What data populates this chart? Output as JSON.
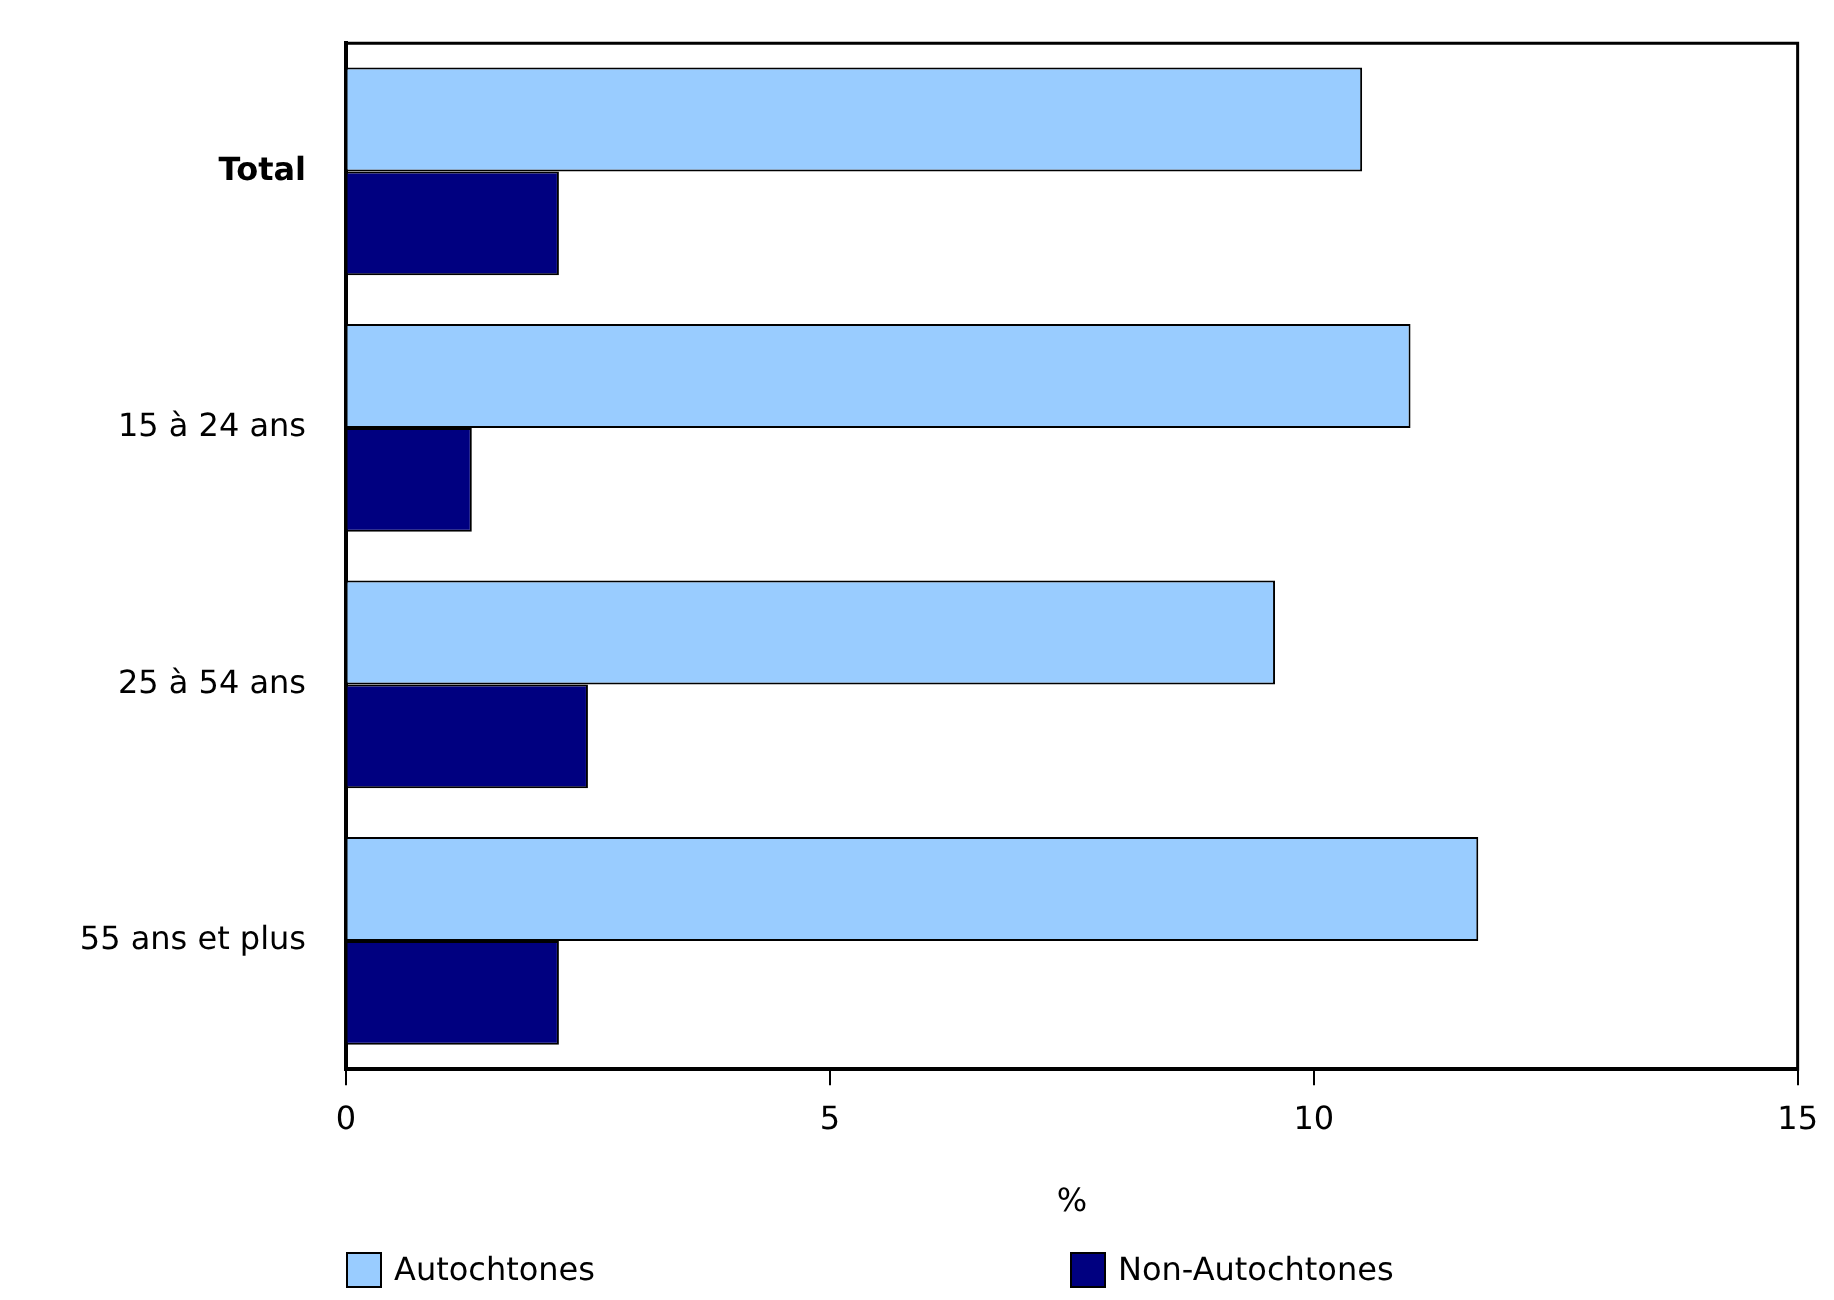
{
  "chart_data": {
    "type": "bar",
    "orientation": "horizontal",
    "xlabel": "%",
    "categories": [
      "Total",
      "15 à 24 ans",
      "25 à 54 ans",
      "55 ans et plus"
    ],
    "series": [
      {
        "name": "Autochtones",
        "color": "#99ccff",
        "values": [
          10.5,
          11.0,
          9.6,
          11.7
        ]
      },
      {
        "name": "Non-Autochtones",
        "color": "#000080",
        "values": [
          2.2,
          1.3,
          2.5,
          2.2
        ]
      }
    ],
    "xlim": [
      0,
      15
    ],
    "xticks": [
      0,
      5,
      10,
      15
    ],
    "grid": false,
    "legend": "bottom"
  }
}
